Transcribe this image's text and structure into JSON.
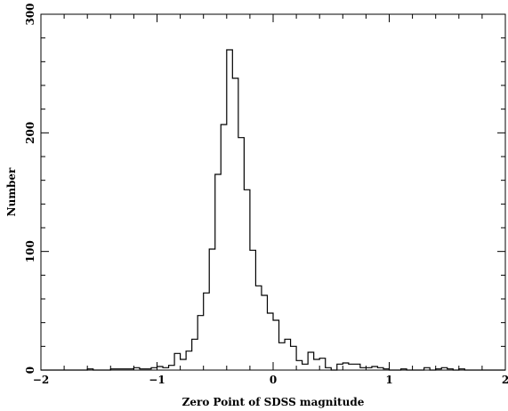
{
  "chart_data": {
    "type": "histogram",
    "xlabel": "Zero Point of SDSS magnitude",
    "ylabel": "Number",
    "xlim": [
      -2,
      2
    ],
    "ylim": [
      0,
      300
    ],
    "x_ticks": [
      -2,
      -1,
      0,
      1,
      2
    ],
    "x_tick_labels": [
      "−2",
      "−1",
      "0",
      "1",
      "2"
    ],
    "y_ticks": [
      0,
      100,
      200,
      300
    ],
    "y_tick_labels": [
      "0",
      "100",
      "200",
      "300"
    ],
    "bin_width": 0.05,
    "bin_start": -2.0,
    "counts": [
      0,
      0,
      0,
      0,
      0,
      0,
      0,
      0,
      1,
      0,
      0,
      0,
      1,
      1,
      1,
      1,
      2,
      1,
      1,
      2,
      3,
      2,
      4,
      14,
      9,
      16,
      26,
      46,
      65,
      102,
      165,
      207,
      270,
      246,
      196,
      152,
      101,
      71,
      63,
      48,
      42,
      23,
      26,
      20,
      8,
      5,
      15,
      9,
      10,
      2,
      0,
      5,
      6,
      5,
      5,
      2,
      2,
      3,
      2,
      1,
      0,
      0,
      1,
      0,
      0,
      0,
      2,
      0,
      1,
      2,
      1,
      0,
      1,
      0,
      0,
      0,
      0,
      0,
      0,
      0
    ],
    "grid": false,
    "legend": "none"
  }
}
